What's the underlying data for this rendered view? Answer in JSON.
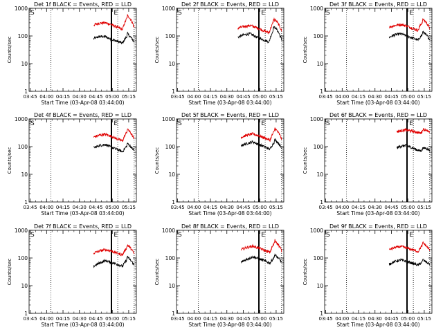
{
  "figure": {
    "x_tick_labels": [
      "03:45",
      "04:00",
      "04:15",
      "04:30",
      "04:45",
      "05:00",
      "05:15"
    ],
    "x_axis_label": "Start Time (03-Apr-08 03:44:00)",
    "y_axis_label": "Counts/sec",
    "y_tick_labels": [
      "1",
      "10",
      "100",
      "1000"
    ],
    "marker_s": "S",
    "marker_e": "E"
  },
  "chart_data": [
    {
      "type": "line",
      "title": "Det 1f BLACK = Events, RED = LLD",
      "xlabel": "Start Time (03-Apr-08 03:44:00)",
      "ylabel": "Counts/sec",
      "ylog": true,
      "xlim": [
        "03:44",
        "05:22"
      ],
      "ylim": [
        1,
        1000
      ],
      "xticks": [
        "03:45",
        "04:00",
        "04:15",
        "04:30",
        "04:45",
        "05:00",
        "05:15"
      ],
      "yticks": [
        1,
        10,
        100,
        1000
      ],
      "grid": false,
      "solid_vlines": [
        "04:59",
        "04:59:30"
      ],
      "dotted_vlines": [
        "04:04",
        "05:05",
        "05:20"
      ],
      "series": [
        {
          "name": "Events",
          "color": "#000000",
          "start": "04:43",
          "end": "05:20",
          "level": [
            80,
            95,
            95,
            75,
            65,
            55,
            110,
            60
          ],
          "peak": {
            "x": "05:14",
            "y": 130
          }
        },
        {
          "name": "LLD",
          "color": "#e00000",
          "start": "04:43",
          "end": "05:20",
          "level": [
            250,
            290,
            300,
            260,
            210,
            170,
            520,
            200
          ],
          "peak": {
            "x": "05:14",
            "y": 560
          }
        }
      ]
    },
    {
      "type": "line",
      "title": "Det 2f BLACK = Events, RED = LLD",
      "xlabel": "Start Time (03-Apr-08 03:44:00)",
      "ylabel": "Counts/sec",
      "ylog": true,
      "xlim": [
        "03:44",
        "05:22"
      ],
      "ylim": [
        1,
        1000
      ],
      "xticks": [
        "03:45",
        "04:00",
        "04:15",
        "04:30",
        "04:45",
        "05:00",
        "05:15"
      ],
      "yticks": [
        1,
        10,
        100,
        1000
      ],
      "grid": false,
      "solid_vlines": [
        "04:59",
        "04:59:30"
      ],
      "dotted_vlines": [
        "04:04",
        "05:05",
        "05:20"
      ],
      "series": [
        {
          "name": "Events",
          "color": "#000000",
          "start": "04:40",
          "end": "05:20",
          "level": [
            90,
            110,
            120,
            90,
            75,
            60,
            200,
            70
          ],
          "peak": {
            "x": "05:13",
            "y": 230
          }
        },
        {
          "name": "LLD",
          "color": "#e00000",
          "start": "04:40",
          "end": "05:20",
          "level": [
            190,
            220,
            240,
            200,
            160,
            130,
            380,
            150
          ],
          "peak": {
            "x": "05:13",
            "y": 430
          }
        }
      ]
    },
    {
      "type": "line",
      "title": "Det 3f BLACK = Events, RED = LLD",
      "xlabel": "Start Time (03-Apr-08 03:44:00)",
      "ylabel": "Counts/sec",
      "ylog": true,
      "xlim": [
        "03:44",
        "05:22"
      ],
      "ylim": [
        1,
        1000
      ],
      "xticks": [
        "03:45",
        "04:00",
        "04:15",
        "04:30",
        "04:45",
        "05:00",
        "05:15"
      ],
      "yticks": [
        1,
        10,
        100,
        1000
      ],
      "grid": false,
      "solid_vlines": [
        "04:59",
        "04:59:30"
      ],
      "dotted_vlines": [
        "04:04",
        "05:05",
        "05:20"
      ],
      "series": [
        {
          "name": "Events",
          "color": "#000000",
          "start": "04:43",
          "end": "05:20",
          "level": [
            90,
            110,
            120,
            100,
            85,
            70,
            130,
            75
          ],
          "peak": {
            "x": "05:14",
            "y": 150
          }
        },
        {
          "name": "LLD",
          "color": "#e00000",
          "start": "04:43",
          "end": "05:20",
          "level": [
            210,
            240,
            260,
            230,
            190,
            160,
            380,
            190
          ],
          "peak": {
            "x": "05:14",
            "y": 420
          }
        }
      ]
    },
    {
      "type": "line",
      "title": "Det 4f BLACK = Events, RED = LLD",
      "xlabel": "Start Time (03-Apr-08 03:44:00)",
      "ylabel": "Counts/sec",
      "ylog": true,
      "xlim": [
        "03:44",
        "05:22"
      ],
      "ylim": [
        1,
        1000
      ],
      "xticks": [
        "03:45",
        "04:00",
        "04:15",
        "04:30",
        "04:45",
        "05:00",
        "05:15"
      ],
      "yticks": [
        1,
        10,
        100,
        1000
      ],
      "grid": false,
      "solid_vlines": [
        "04:59",
        "04:59:30"
      ],
      "dotted_vlines": [
        "04:04",
        "05:05",
        "05:20"
      ],
      "series": [
        {
          "name": "Events",
          "color": "#000000",
          "start": "04:43",
          "end": "05:20",
          "level": [
            90,
            110,
            120,
            95,
            80,
            65,
            120,
            70
          ],
          "peak": {
            "x": "05:14",
            "y": 140
          }
        },
        {
          "name": "LLD",
          "color": "#e00000",
          "start": "04:43",
          "end": "05:20",
          "level": [
            220,
            260,
            280,
            240,
            190,
            160,
            400,
            180
          ],
          "peak": {
            "x": "05:14",
            "y": 450
          }
        }
      ]
    },
    {
      "type": "line",
      "title": "Det 5f BLACK = Events, RED = LLD",
      "xlabel": "Start Time (03-Apr-08 03:44:00)",
      "ylabel": "Counts/sec",
      "ylog": true,
      "xlim": [
        "03:44",
        "05:22"
      ],
      "ylim": [
        1,
        1000
      ],
      "xticks": [
        "03:45",
        "04:00",
        "04:15",
        "04:30",
        "04:45",
        "05:00",
        "05:15"
      ],
      "yticks": [
        1,
        10,
        100,
        1000
      ],
      "grid": false,
      "solid_vlines": [
        "04:59",
        "04:59:30"
      ],
      "dotted_vlines": [
        "04:04",
        "05:05",
        "05:20"
      ],
      "series": [
        {
          "name": "Events",
          "color": "#000000",
          "start": "04:43",
          "end": "05:20",
          "level": [
            110,
            130,
            150,
            120,
            100,
            80,
            170,
            85
          ],
          "peak": {
            "x": "05:14",
            "y": 190
          }
        },
        {
          "name": "LLD",
          "color": "#e00000",
          "start": "04:43",
          "end": "05:20",
          "level": [
            220,
            260,
            290,
            250,
            210,
            170,
            420,
            190
          ],
          "peak": {
            "x": "05:14",
            "y": 480
          }
        }
      ]
    },
    {
      "type": "line",
      "title": "Det 6f BLACK = Events, RED = LLD",
      "xlabel": "Start Time (03-Apr-08 03:44:00)",
      "ylabel": "Counts/sec",
      "ylog": true,
      "xlim": [
        "03:44",
        "05:22"
      ],
      "ylim": [
        1,
        1000
      ],
      "xticks": [
        "03:45",
        "04:00",
        "04:15",
        "04:30",
        "04:45",
        "05:00",
        "05:15"
      ],
      "yticks": [
        1,
        10,
        100,
        1000
      ],
      "grid": false,
      "solid_vlines": [
        "04:59",
        "04:59:30"
      ],
      "dotted_vlines": [
        "04:04",
        "05:05",
        "05:20"
      ],
      "series": [
        {
          "name": "Events",
          "color": "#000000",
          "start": "04:50",
          "end": "05:20",
          "level": [
            90,
            105,
            110,
            95,
            80,
            70,
            90,
            75
          ],
          "peak": {
            "x": "05:14",
            "y": 100
          }
        },
        {
          "name": "LLD",
          "color": "#e00000",
          "start": "04:50",
          "end": "05:20",
          "level": [
            350,
            380,
            400,
            370,
            340,
            310,
            420,
            320
          ],
          "peak": {
            "x": "05:14",
            "y": 460
          }
        }
      ]
    },
    {
      "type": "line",
      "title": "Det 7f BLACK = Events, RED = LLD",
      "xlabel": "Start Time (03-Apr-08 03:44:00)",
      "ylabel": "Counts/sec",
      "ylog": true,
      "xlim": [
        "03:44",
        "05:22"
      ],
      "ylim": [
        1,
        1000
      ],
      "xticks": [
        "03:45",
        "04:00",
        "04:15",
        "04:30",
        "04:45",
        "05:00",
        "05:15"
      ],
      "yticks": [
        1,
        10,
        100,
        1000
      ],
      "grid": false,
      "solid_vlines": [
        "04:59",
        "04:59:30"
      ],
      "dotted_vlines": [
        "04:04",
        "05:05",
        "05:20"
      ],
      "series": [
        {
          "name": "Events",
          "color": "#000000",
          "start": "04:43",
          "end": "05:20",
          "level": [
            50,
            65,
            80,
            70,
            60,
            50,
            100,
            55
          ],
          "peak": {
            "x": "05:14",
            "y": 120
          }
        },
        {
          "name": "LLD",
          "color": "#e00000",
          "start": "04:43",
          "end": "05:20",
          "level": [
            150,
            180,
            200,
            180,
            150,
            130,
            280,
            140
          ],
          "peak": {
            "x": "05:14",
            "y": 310
          }
        }
      ]
    },
    {
      "type": "line",
      "title": "Det 8f BLACK = Events, RED = LLD",
      "xlabel": "Start Time (03-Apr-08 03:44:00)",
      "ylabel": "Counts/sec",
      "ylog": true,
      "xlim": [
        "03:44",
        "05:22"
      ],
      "ylim": [
        1,
        1000
      ],
      "xticks": [
        "03:45",
        "04:00",
        "04:15",
        "04:30",
        "04:45",
        "05:00",
        "05:15"
      ],
      "yticks": [
        1,
        10,
        100,
        1000
      ],
      "grid": false,
      "solid_vlines": [
        "04:59",
        "04:59:30"
      ],
      "dotted_vlines": [
        "04:04",
        "05:05",
        "05:20"
      ],
      "series": [
        {
          "name": "Events",
          "color": "#000000",
          "start": "04:43",
          "end": "05:20",
          "level": [
            70,
            90,
            110,
            95,
            80,
            65,
            120,
            70
          ],
          "peak": {
            "x": "05:14",
            "y": 140
          }
        },
        {
          "name": "LLD",
          "color": "#e00000",
          "start": "04:43",
          "end": "05:20",
          "level": [
            200,
            240,
            270,
            230,
            190,
            160,
            400,
            180
          ],
          "peak": {
            "x": "05:14",
            "y": 450
          }
        }
      ]
    },
    {
      "type": "line",
      "title": "Det 9f BLACK = Events, RED = LLD",
      "xlabel": "Start Time (03-Apr-08 03:44:00)",
      "ylabel": "Counts/sec",
      "ylog": true,
      "xlim": [
        "03:44",
        "05:22"
      ],
      "ylim": [
        1,
        1000
      ],
      "xticks": [
        "03:45",
        "04:00",
        "04:15",
        "04:30",
        "04:45",
        "05:00",
        "05:15"
      ],
      "yticks": [
        1,
        10,
        100,
        1000
      ],
      "grid": false,
      "solid_vlines": [
        "04:59",
        "04:59:30"
      ],
      "dotted_vlines": [
        "04:04",
        "05:05",
        "05:20"
      ],
      "series": [
        {
          "name": "Events",
          "color": "#000000",
          "start": "04:43",
          "end": "05:20",
          "level": [
            60,
            75,
            85,
            75,
            65,
            55,
            80,
            60
          ],
          "peak": {
            "x": "05:14",
            "y": 95
          }
        },
        {
          "name": "LLD",
          "color": "#e00000",
          "start": "04:43",
          "end": "05:20",
          "level": [
            200,
            240,
            260,
            230,
            200,
            170,
            330,
            190
          ],
          "peak": {
            "x": "05:14",
            "y": 380
          }
        }
      ]
    }
  ]
}
